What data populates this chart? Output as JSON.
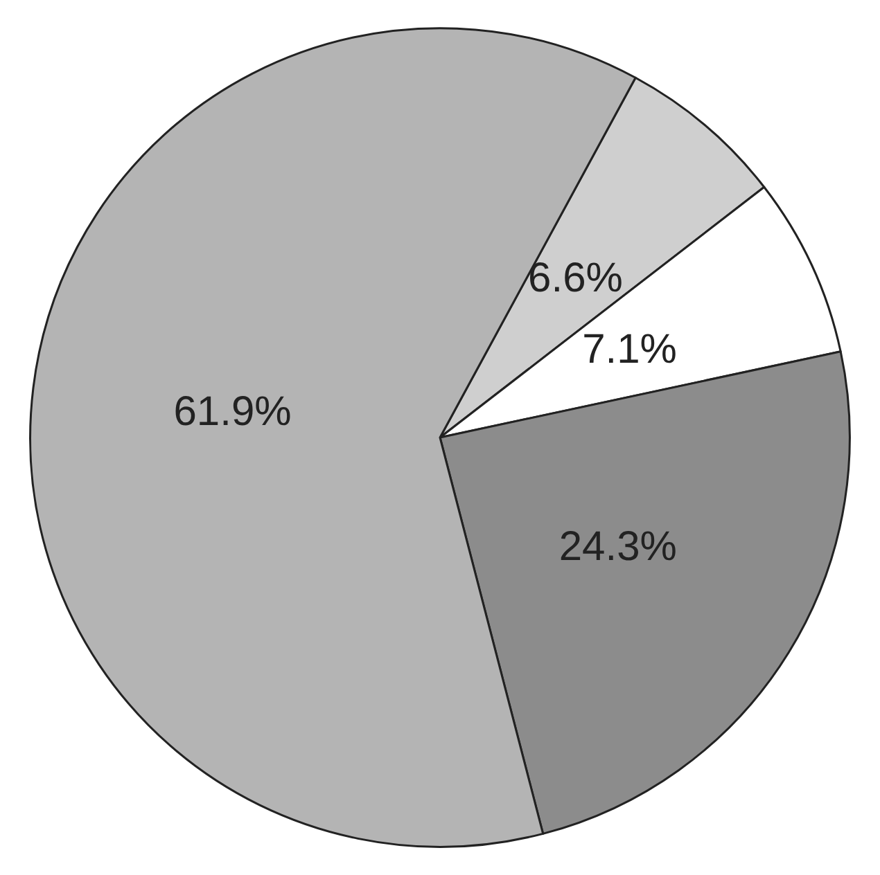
{
  "chart_data": {
    "type": "pie",
    "categories": [
      null,
      null,
      null,
      null
    ],
    "values": [
      6.6,
      7.1,
      24.3,
      61.9
    ],
    "value_labels": [
      "6.6%",
      "7.1%",
      "24.3%",
      "61.9%"
    ],
    "colors": [
      "#cfcfcf",
      "#ffffff",
      "#8c8c8c",
      "#b4b4b4"
    ]
  }
}
